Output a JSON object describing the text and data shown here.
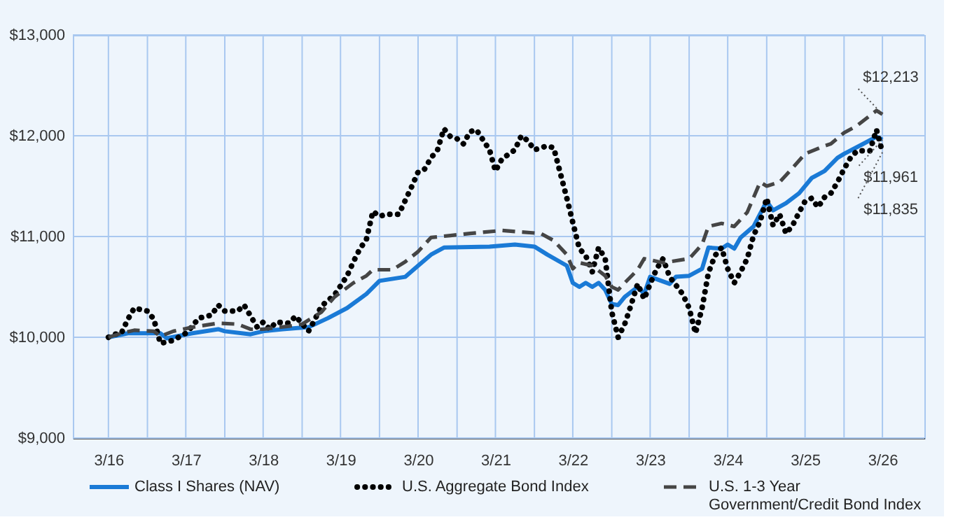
{
  "chart_data": {
    "type": "line",
    "xlim": [
      "2015-09-15",
      "2026-09-15"
    ],
    "xticks": [
      {
        "value": "2016-03",
        "label": "3/16"
      },
      {
        "value": "2016-09",
        "label": null
      },
      {
        "value": "2017-03",
        "label": "3/17"
      },
      {
        "value": "2017-09",
        "label": null
      },
      {
        "value": "2018-03",
        "label": "3/18"
      },
      {
        "value": "2018-09",
        "label": null
      },
      {
        "value": "2019-03",
        "label": "3/19"
      },
      {
        "value": "2019-09",
        "label": null
      },
      {
        "value": "2020-03",
        "label": "3/20"
      },
      {
        "value": "2020-09",
        "label": null
      },
      {
        "value": "2021-03",
        "label": "3/21"
      },
      {
        "value": "2021-09",
        "label": null
      },
      {
        "value": "2022-03",
        "label": "3/22"
      },
      {
        "value": "2022-09",
        "label": null
      },
      {
        "value": "2023-03",
        "label": "3/23"
      },
      {
        "value": "2023-09",
        "label": null
      },
      {
        "value": "2024-03",
        "label": "3/24"
      },
      {
        "value": "2024-09",
        "label": null
      },
      {
        "value": "2025-03",
        "label": "3/25"
      },
      {
        "value": "2025-09",
        "label": null
      },
      {
        "value": "2026-03",
        "label": "3/26"
      }
    ],
    "ylim": [
      9000,
      13000
    ],
    "yticks": [
      {
        "value": 9000,
        "label": "$9,000"
      },
      {
        "value": 10000,
        "label": "$10,000"
      },
      {
        "value": 11000,
        "label": "$11,000"
      },
      {
        "value": 12000,
        "label": "$12,000"
      },
      {
        "value": 13000,
        "label": "$13,000"
      }
    ],
    "grid": true,
    "legend": "bottom",
    "annotations": [
      {
        "text": "$12,213",
        "x": "2026-03",
        "y": 12213
      },
      {
        "text": "$11,961",
        "x": "2026-03",
        "y": 11961
      },
      {
        "text": "$11,835",
        "x": "2026-03",
        "y": 11835
      }
    ],
    "series": [
      {
        "name": "Class I Shares (NAV)",
        "color": "#1a7ad6",
        "line_style": "solid",
        "x": [
          "2016-03",
          "2016-06",
          "2016-11",
          "2016-12",
          "2017-04",
          "2017-08",
          "2017-09",
          "2018-01",
          "2018-03",
          "2018-06",
          "2018-10",
          "2019-01",
          "2019-04",
          "2019-07",
          "2019-09",
          "2020-01",
          "2020-03",
          "2020-05",
          "2020-07",
          "2021-02",
          "2021-06",
          "2021-09",
          "2021-11",
          "2022-02",
          "2022-03",
          "2022-04",
          "2022-05",
          "2022-06",
          "2022-07",
          "2022-08",
          "2022-09",
          "2022-10",
          "2022-11",
          "2023-01",
          "2023-02",
          "2023-03",
          "2023-06",
          "2023-07",
          "2023-09",
          "2023-11",
          "2023-12",
          "2024-02",
          "2024-03",
          "2024-04",
          "2024-05",
          "2024-07",
          "2024-09",
          "2024-10",
          "2024-12",
          "2025-02",
          "2025-04",
          "2025-06",
          "2025-08",
          "2025-09",
          "2025-12",
          "2026-02",
          "2026-03"
        ],
        "values": [
          10000,
          10040,
          10040,
          9990,
          10040,
          10080,
          10060,
          10030,
          10060,
          10080,
          10100,
          10190,
          10290,
          10430,
          10560,
          10600,
          10710,
          10820,
          10890,
          10900,
          10920,
          10900,
          10820,
          10710,
          10540,
          10500,
          10540,
          10500,
          10540,
          10470,
          10330,
          10320,
          10400,
          10500,
          10430,
          10600,
          10530,
          10600,
          10610,
          10680,
          10890,
          10880,
          10920,
          10880,
          10990,
          11100,
          11350,
          11260,
          11330,
          11430,
          11580,
          11650,
          11780,
          11820,
          11920,
          11990,
          11961
        ]
      },
      {
        "name": "U.S. Aggregate Bond Index",
        "color": "#000000",
        "line_style": "dotted",
        "x": [
          "2016-03",
          "2016-04",
          "2016-05",
          "2016-06",
          "2016-07",
          "2016-09",
          "2016-10",
          "2016-11",
          "2017-01",
          "2017-03",
          "2017-04",
          "2017-05",
          "2017-07",
          "2017-08",
          "2017-09",
          "2017-11",
          "2017-12",
          "2018-01",
          "2018-02",
          "2018-03",
          "2018-04",
          "2018-05",
          "2018-07",
          "2018-08",
          "2018-10",
          "2018-11",
          "2018-12",
          "2019-02",
          "2019-03",
          "2019-04",
          "2019-05",
          "2019-06",
          "2019-07",
          "2019-08",
          "2019-09",
          "2019-10",
          "2019-12",
          "2020-01",
          "2020-02",
          "2020-03",
          "2020-04",
          "2020-05",
          "2020-06",
          "2020-07",
          "2020-08",
          "2020-09",
          "2020-10",
          "2020-11",
          "2020-12",
          "2021-01",
          "2021-02",
          "2021-03",
          "2021-04",
          "2021-06",
          "2021-07",
          "2021-08",
          "2021-09",
          "2021-11",
          "2021-12",
          "2022-01",
          "2022-02",
          "2022-03",
          "2022-04",
          "2022-05",
          "2022-06",
          "2022-07",
          "2022-08",
          "2022-09",
          "2022-10",
          "2022-11",
          "2022-12",
          "2023-01",
          "2023-02",
          "2023-03",
          "2023-04",
          "2023-05",
          "2023-06",
          "2023-08",
          "2023-09",
          "2023-10",
          "2023-11",
          "2023-12",
          "2024-01",
          "2024-02",
          "2024-03",
          "2024-04",
          "2024-05",
          "2024-06",
          "2024-07",
          "2024-08",
          "2024-09",
          "2024-10",
          "2024-11",
          "2024-12",
          "2025-01",
          "2025-02",
          "2025-03",
          "2025-04",
          "2025-05",
          "2025-06",
          "2025-07",
          "2025-08",
          "2025-09",
          "2025-10",
          "2025-11",
          "2025-12",
          "2026-01",
          "2026-02",
          "2026-03"
        ],
        "values": [
          10000,
          10030,
          10040,
          10180,
          10290,
          10260,
          10180,
          9940,
          9970,
          10040,
          10110,
          10190,
          10220,
          10320,
          10260,
          10260,
          10320,
          10210,
          10100,
          10150,
          10080,
          10150,
          10140,
          10210,
          10060,
          10180,
          10310,
          10420,
          10510,
          10610,
          10750,
          10880,
          10970,
          11250,
          11200,
          11220,
          11220,
          11360,
          11500,
          11640,
          11670,
          11780,
          11860,
          12070,
          11990,
          11970,
          11920,
          12040,
          12060,
          11960,
          11860,
          11650,
          11770,
          11860,
          12000,
          11950,
          11860,
          11900,
          11880,
          11630,
          11380,
          11140,
          10880,
          10810,
          10650,
          10890,
          10780,
          10250,
          10000,
          10130,
          10320,
          10530,
          10380,
          10530,
          10680,
          10780,
          10600,
          10430,
          10290,
          10040,
          10290,
          10640,
          10810,
          10890,
          10680,
          10540,
          10650,
          10780,
          11010,
          11150,
          11380,
          11110,
          11220,
          11030,
          11110,
          11240,
          11350,
          11380,
          11290,
          11390,
          11430,
          11540,
          11670,
          11780,
          11850,
          11850,
          11850,
          12060,
          11835
        ]
      },
      {
        "name": "U.S. 1-3 Year Government/Credit Bond Index",
        "color": "#454545",
        "line_style": "dashed",
        "x": [
          "2016-03",
          "2016-05",
          "2016-07",
          "2016-10",
          "2016-11",
          "2017-01",
          "2017-04",
          "2017-08",
          "2017-11",
          "2018-01",
          "2018-03",
          "2018-07",
          "2018-09",
          "2018-10",
          "2018-12",
          "2019-02",
          "2019-05",
          "2019-07",
          "2019-08",
          "2019-11",
          "2020-01",
          "2020-03",
          "2020-05",
          "2020-08",
          "2020-11",
          "2021-04",
          "2021-10",
          "2021-12",
          "2022-02",
          "2022-03",
          "2022-04",
          "2022-06",
          "2022-08",
          "2022-09",
          "2022-10",
          "2022-11",
          "2023-01",
          "2023-02",
          "2023-05",
          "2023-06",
          "2023-09",
          "2023-11",
          "2023-12",
          "2024-02",
          "2024-04",
          "2024-06",
          "2024-08",
          "2024-09",
          "2024-11",
          "2025-01",
          "2025-03",
          "2025-06",
          "2025-07",
          "2025-09",
          "2025-11",
          "2026-02",
          "2026-03"
        ],
        "values": [
          10000,
          10040,
          10070,
          10060,
          10010,
          10060,
          10100,
          10140,
          10130,
          10080,
          10080,
          10110,
          10130,
          10170,
          10250,
          10400,
          10540,
          10610,
          10670,
          10670,
          10750,
          10850,
          10990,
          11010,
          11030,
          11060,
          11030,
          10960,
          10820,
          10680,
          10740,
          10710,
          10610,
          10500,
          10470,
          10540,
          10670,
          10780,
          10740,
          10750,
          10780,
          10920,
          11100,
          11130,
          11100,
          11240,
          11540,
          11500,
          11540,
          11680,
          11820,
          11900,
          11920,
          12030,
          12100,
          12250,
          12213
        ]
      }
    ]
  }
}
